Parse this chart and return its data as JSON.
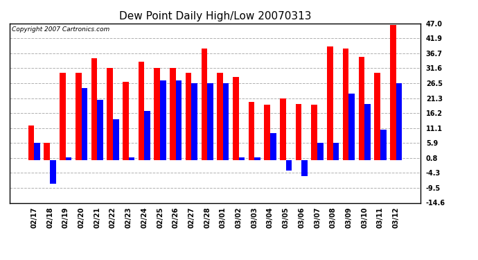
{
  "title": "Dew Point Daily High/Low 20070313",
  "copyright": "Copyright 2007 Cartronics.com",
  "dates": [
    "02/17",
    "02/18",
    "02/19",
    "02/20",
    "02/21",
    "02/22",
    "02/23",
    "02/24",
    "02/25",
    "02/26",
    "02/27",
    "02/28",
    "03/01",
    "03/02",
    "03/03",
    "03/04",
    "03/05",
    "03/06",
    "03/07",
    "03/08",
    "03/09",
    "03/10",
    "03/11",
    "03/12"
  ],
  "highs": [
    12.0,
    5.9,
    30.0,
    30.0,
    35.1,
    31.6,
    27.0,
    33.8,
    31.6,
    31.6,
    30.0,
    38.3,
    30.0,
    28.5,
    20.0,
    19.0,
    21.3,
    19.4,
    19.0,
    39.2,
    38.3,
    35.6,
    30.0,
    46.4
  ],
  "lows": [
    5.9,
    -8.0,
    1.0,
    24.8,
    20.8,
    14.0,
    1.0,
    17.0,
    27.4,
    27.4,
    26.5,
    26.5,
    26.5,
    1.0,
    1.0,
    9.4,
    -3.5,
    -5.5,
    5.9,
    5.9,
    23.0,
    19.4,
    10.4,
    26.5
  ],
  "bar_color_high": "#ff0000",
  "bar_color_low": "#0000ff",
  "background_color": "#ffffff",
  "grid_color": "#b0b0b0",
  "yticks": [
    47.0,
    41.9,
    36.7,
    31.6,
    26.5,
    21.3,
    16.2,
    11.1,
    5.9,
    0.8,
    -4.3,
    -9.5,
    -14.6
  ],
  "ylim": [
    -14.6,
    47.0
  ],
  "bar_width": 0.38,
  "title_fontsize": 11,
  "tick_fontsize": 7,
  "copyright_fontsize": 6.5
}
